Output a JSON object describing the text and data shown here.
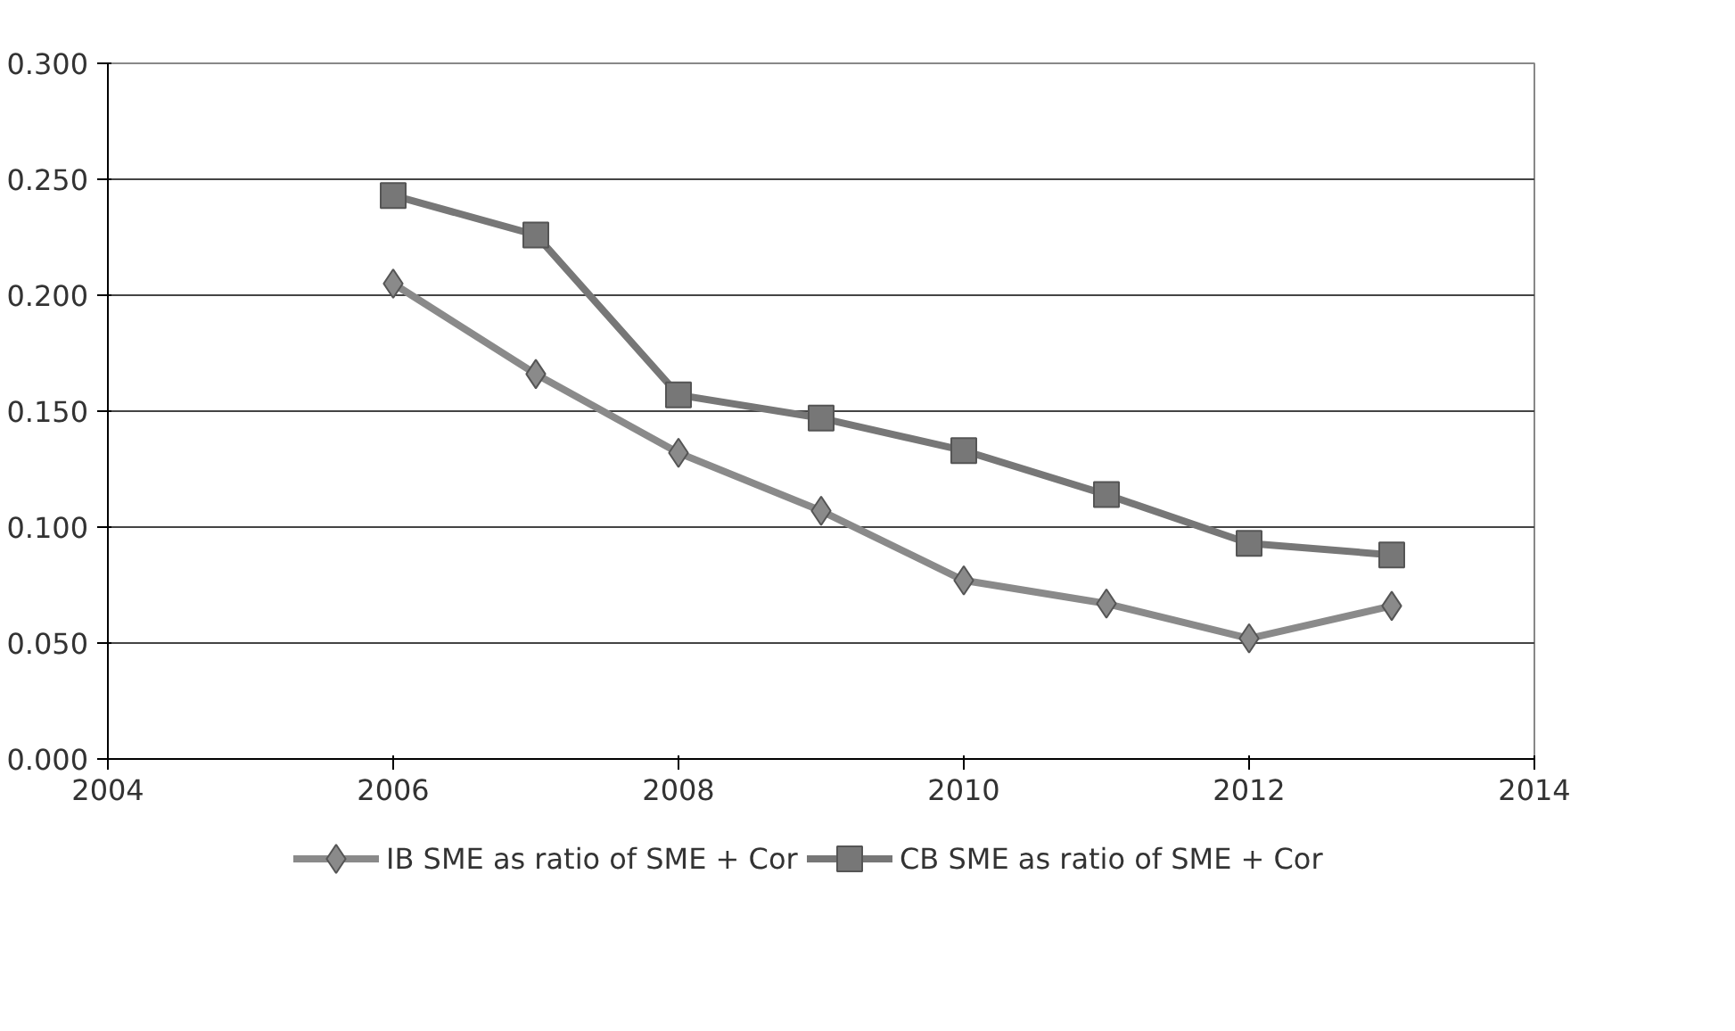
{
  "chart_data": {
    "type": "line",
    "x": [
      2006,
      2007,
      2008,
      2009,
      2010,
      2011,
      2012,
      2013
    ],
    "series": [
      {
        "name": "IB SME as ratio of SME + Cor",
        "color": "#8a8a8a",
        "marker": "diamond",
        "values": [
          0.205,
          0.166,
          0.132,
          0.107,
          0.077,
          0.067,
          0.052,
          0.066
        ]
      },
      {
        "name": "CB SME as ratio of SME + Cor",
        "color": "#777777",
        "marker": "square",
        "values": [
          0.243,
          0.226,
          0.157,
          0.147,
          0.133,
          0.114,
          0.093,
          0.088
        ]
      }
    ],
    "xlim": [
      2004,
      2014
    ],
    "xticks": [
      2004,
      2006,
      2008,
      2010,
      2012,
      2014
    ],
    "ylim": [
      0,
      0.3
    ],
    "yticks": [
      {
        "value": 0,
        "label": "0.000"
      },
      {
        "value": 0.05,
        "label": "0.050"
      },
      {
        "value": 0.1,
        "label": "0.100"
      },
      {
        "value": 0.15,
        "label": "0.150"
      },
      {
        "value": 0.2,
        "label": "0.200"
      },
      {
        "value": 0.25,
        "label": "0.250"
      },
      {
        "value": 0.3,
        "label": "0.300"
      }
    ],
    "grid": "y",
    "legend": "bottom",
    "line_style": "solid"
  }
}
